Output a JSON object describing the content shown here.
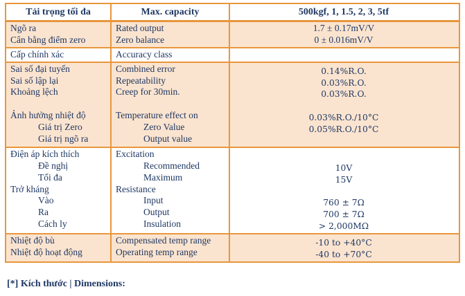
{
  "colors": {
    "border_orange": "#E8963C",
    "row_peach": "#FBE4CF",
    "text_navy": "#1F3864",
    "page_background": "#FFFFFF"
  },
  "table": {
    "header": {
      "vi": "Tải trọng tối đa",
      "en": "Max. capacity",
      "val": "500kgf, 1, 1.5, 2, 3, 5tf"
    },
    "rows": {
      "r1": {
        "vi": [
          "Ngõ ra",
          "Cân bằng điểm zero"
        ],
        "en": [
          "Rated output",
          "Zero balance"
        ],
        "val": [
          "1.7 ± 0.17mV/V",
          "0 ± 0.016mV/V"
        ]
      },
      "r2": {
        "vi": [
          "Cấp chính xác"
        ],
        "en": [
          "Accuracy class"
        ],
        "val": [
          ""
        ]
      },
      "r3": {
        "vi": [
          "Sai số đại tuyến",
          "Sai số lập lại",
          "Khoảng lệch",
          "",
          "Ảnh hưởng nhiệt độ",
          "Giá trị Zero",
          "Giá trị ngõ ra"
        ],
        "en": [
          "Combined error",
          "Repeatability",
          "Creep for 30min.",
          "",
          "Temperature effect on",
          "Zero Value",
          "Output value"
        ],
        "val": [
          "0.14%R.O.",
          "0.03%R.O.",
          "0.03%R.O.",
          "",
          "0.03%R.O./10°C",
          "0.05%R.O./10°C",
          ""
        ]
      },
      "r4": {
        "vi": [
          "Điện áp kích thích",
          "Đề nghị",
          "Tối đa",
          "Trở kháng",
          "Vào",
          "Ra",
          "Cách ly"
        ],
        "en": [
          "Excitation",
          "Recommended",
          "Maximum",
          "Resistance",
          "Input",
          "Output",
          "Insulation"
        ],
        "val": [
          "",
          "10V",
          "15V",
          "",
          "760 ± 7Ω",
          "700 ± 7Ω",
          "> 2,000MΩ"
        ]
      },
      "r5": {
        "vi": [
          "Nhiệt độ bù",
          "Nhiệt độ hoạt động"
        ],
        "en": [
          "Compensated temp range",
          "Operating temp range"
        ],
        "val": [
          "-10 to +40°C",
          "-40 to +70°C"
        ]
      }
    }
  },
  "footnote": "[*] Kích thước | Dimensions:"
}
